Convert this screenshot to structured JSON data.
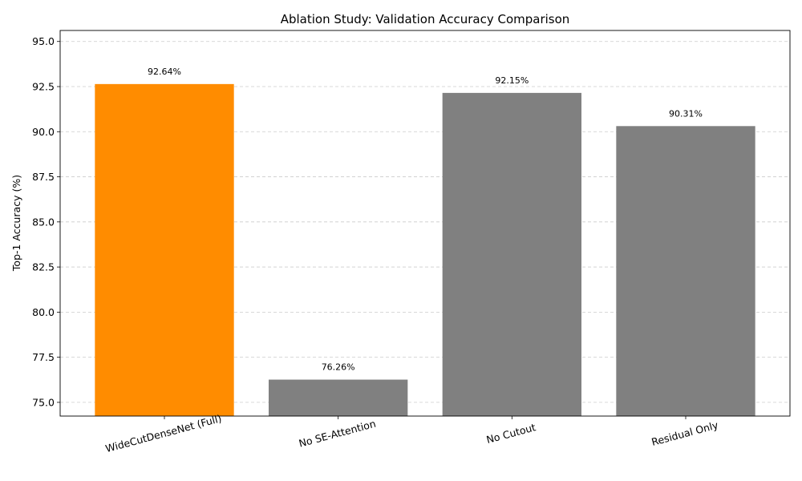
{
  "chart_data": {
    "type": "bar",
    "title": "Ablation Study: Validation Accuracy Comparison",
    "xlabel": "",
    "ylabel": "Top-1 Accuracy (%)",
    "categories": [
      "WideCutDenseNet (Full)",
      "No SE-Attention",
      "No Cutout",
      "Residual Only"
    ],
    "values": [
      92.64,
      76.26,
      92.15,
      90.31
    ],
    "data_labels": [
      "92.64%",
      "76.26%",
      "92.15%",
      "90.31%"
    ],
    "bar_colors": [
      "#ff8c00",
      "#808080",
      "#808080",
      "#808080"
    ],
    "ylim": [
      74.24,
      95.61
    ],
    "yticks": [
      75.0,
      77.5,
      80.0,
      82.5,
      85.0,
      87.5,
      90.0,
      92.5,
      95.0
    ],
    "ytick_labels": [
      "75.0",
      "77.5",
      "80.0",
      "82.5",
      "85.0",
      "87.5",
      "90.0",
      "92.5",
      "95.0"
    ],
    "grid": "y-dashed",
    "xtick_rotation_deg": 15
  }
}
